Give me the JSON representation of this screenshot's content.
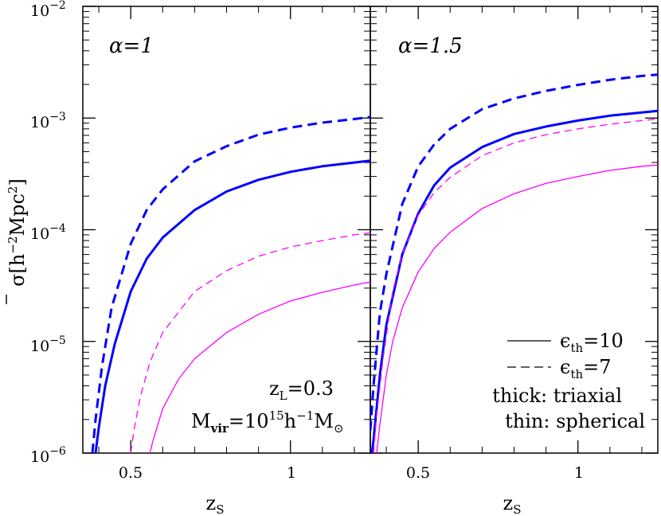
{
  "chart_data": [
    {
      "type": "line",
      "panel_label": "α=1",
      "xlabel": "z_s",
      "ylabel": "σ̄ [h⁻²Mpc²]",
      "xscale": "linear",
      "yscale": "log",
      "xlim": [
        0.35,
        1.25
      ],
      "ylim": [
        1e-06,
        0.01
      ],
      "series": [
        {
          "style": "solid",
          "weight": "thick",
          "color": "#0000ff",
          "x": [
            0.39,
            0.4,
            0.42,
            0.45,
            0.5,
            0.55,
            0.6,
            0.7,
            0.8,
            0.9,
            1.0,
            1.1,
            1.2,
            1.25
          ],
          "y": [
            1e-06,
            1.7e-06,
            4e-06,
            9.5e-06,
            2.8e-05,
            5.5e-05,
            8.5e-05,
            0.00015,
            0.00022,
            0.00028,
            0.00033,
            0.00037,
            0.0004,
            0.000415
          ]
        },
        {
          "style": "dashed",
          "weight": "thick",
          "color": "#0000ff",
          "x": [
            0.38,
            0.39,
            0.41,
            0.44,
            0.5,
            0.55,
            0.6,
            0.7,
            0.8,
            0.9,
            1.0,
            1.1,
            1.2,
            1.25
          ],
          "y": [
            1e-06,
            2e-06,
            6e-06,
            2e-05,
            7.5e-05,
            0.00015,
            0.00023,
            0.00041,
            0.00056,
            0.00071,
            0.00082,
            0.00091,
            0.00098,
            0.00102
          ]
        },
        {
          "style": "solid",
          "weight": "thin",
          "color": "#ff00ff",
          "x": [
            0.56,
            0.57,
            0.6,
            0.65,
            0.7,
            0.8,
            0.9,
            1.0,
            1.1,
            1.2,
            1.25
          ],
          "y": [
            1e-06,
            1.3e-06,
            2.5e-06,
            4.6e-06,
            7e-06,
            1.2e-05,
            1.75e-05,
            2.3e-05,
            2.75e-05,
            3.2e-05,
            3.4e-05
          ]
        },
        {
          "style": "dashed",
          "weight": "thin",
          "color": "#ff00ff",
          "x": [
            0.5,
            0.51,
            0.53,
            0.56,
            0.6,
            0.7,
            0.8,
            0.9,
            1.0,
            1.1,
            1.2,
            1.25
          ],
          "y": [
            1e-06,
            1.6e-06,
            3.2e-06,
            6.5e-06,
            1.2e-05,
            2.8e-05,
            4.3e-05,
            5.8e-05,
            7e-05,
            8e-05,
            9e-05,
            9.4e-05
          ]
        }
      ]
    },
    {
      "type": "line",
      "panel_label": "α=1.5",
      "xlabel": "z_s",
      "xscale": "linear",
      "yscale": "log",
      "xlim": [
        0.35,
        1.25
      ],
      "ylim": [
        1e-06,
        0.01
      ],
      "series": [
        {
          "style": "solid",
          "weight": "thick",
          "color": "#0000ff",
          "x": [
            0.355,
            0.36,
            0.38,
            0.4,
            0.45,
            0.5,
            0.55,
            0.6,
            0.7,
            0.8,
            0.9,
            1.0,
            1.1,
            1.2,
            1.25
          ],
          "y": [
            1e-06,
            1.3e-06,
            5e-06,
            1.4e-05,
            6e-05,
            0.00014,
            0.00025,
            0.00036,
            0.00055,
            0.00072,
            0.00084,
            0.00095,
            0.00105,
            0.00112,
            0.00116
          ]
        },
        {
          "style": "dashed",
          "weight": "thick",
          "color": "#0000ff",
          "x": [
            0.35,
            0.36,
            0.38,
            0.4,
            0.45,
            0.5,
            0.55,
            0.6,
            0.7,
            0.8,
            0.9,
            1.0,
            1.1,
            1.2,
            1.25
          ],
          "y": [
            1.6e-06,
            4e-06,
            1.8e-05,
            4e-05,
            0.00017,
            0.00037,
            0.00058,
            0.0008,
            0.0012,
            0.0015,
            0.00175,
            0.00198,
            0.0022,
            0.00238,
            0.00245
          ]
        },
        {
          "style": "solid",
          "weight": "thin",
          "color": "#ff00ff",
          "x": [
            0.37,
            0.38,
            0.4,
            0.42,
            0.45,
            0.5,
            0.55,
            0.6,
            0.7,
            0.8,
            0.9,
            1.0,
            1.1,
            1.2,
            1.25
          ],
          "y": [
            1e-06,
            1.8e-06,
            5e-06,
            1e-05,
            2e-05,
            4.2e-05,
            6.8e-05,
            9.5e-05,
            0.000155,
            0.00021,
            0.00026,
            0.0003,
            0.00034,
            0.00037,
            0.00038
          ]
        },
        {
          "style": "dashed",
          "weight": "thin",
          "color": "#ff00ff",
          "x": [
            0.36,
            0.37,
            0.39,
            0.42,
            0.45,
            0.5,
            0.55,
            0.6,
            0.7,
            0.8,
            0.9,
            1.0,
            1.1,
            1.2,
            1.25
          ],
          "y": [
            1e-06,
            2.2e-06,
            7e-06,
            2.8e-05,
            6e-05,
            0.000135,
            0.000215,
            0.000295,
            0.00046,
            0.0006,
            0.00071,
            0.0008,
            0.00088,
            0.00095,
            0.00098
          ]
        }
      ]
    }
  ],
  "y_ticks": [
    {
      "base": "10",
      "exp": "−2",
      "value": 0.01
    },
    {
      "base": "10",
      "exp": "−3",
      "value": 0.001
    },
    {
      "base": "10",
      "exp": "−4",
      "value": 0.0001
    },
    {
      "base": "10",
      "exp": "−5",
      "value": 1e-05
    },
    {
      "base": "10",
      "exp": "−6",
      "value": 1e-06
    }
  ],
  "x_ticks": [
    {
      "label": "0.5",
      "value": 0.5
    },
    {
      "label": "1",
      "value": 1.0
    }
  ],
  "annotations": {
    "zl_label": "z",
    "zl_sub": "L",
    "zl_value": "=0.3",
    "mvir_label": "M",
    "mvir_sub": "vir",
    "mvir_eq": "=10",
    "mvir_exp": "15",
    "mvir_h": "h",
    "mvir_hexp": "−1",
    "mvir_m": "M",
    "mvir_sun": "⊙"
  },
  "legend": {
    "eps": "ϵ",
    "eps_sub": "th",
    "solid_value": "=10",
    "dashed_value": "=7",
    "thick_label": "thick: triaxial",
    "thin_label": "thin: spherical",
    "thick_color": "#0000ff",
    "thin_color": "#ff00ff"
  },
  "axis_titles": {
    "y_symbol": "σ",
    "y_units_open": "[h",
    "y_units_exp1": "−2",
    "y_units_mid": "Mpc",
    "y_units_exp2": "2",
    "y_units_close": "]",
    "x_symbol": "z",
    "x_sub": "S"
  }
}
